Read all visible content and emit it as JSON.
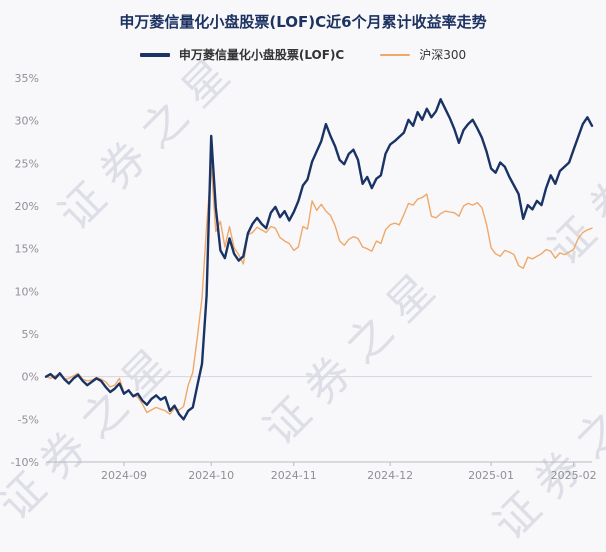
{
  "watermark": "证券之星",
  "chart_data": {
    "type": "line",
    "title": "申万菱信量化小盘股票(LOF)C近6个月累计收益率走势",
    "xlabel": "",
    "ylabel": "",
    "ylim": [
      -10,
      35
    ],
    "yticks": [
      -10,
      -5,
      0,
      5,
      10,
      15,
      20,
      25,
      30,
      35
    ],
    "ytick_suffix": "%",
    "xticks": [
      "2024-09",
      "2024-10",
      "2024-11",
      "2024-12",
      "2025-01",
      "2025-02"
    ],
    "grid": "zero-line-only",
    "legend_position": "top",
    "axis_color": "#b8b8c2",
    "tick_label_color": "#8f8f97",
    "zero_line_color": "#d6d6e0",
    "x": [
      "2024-08-08",
      "2024-08-09",
      "2024-08-12",
      "2024-08-13",
      "2024-08-14",
      "2024-08-15",
      "2024-08-16",
      "2024-08-19",
      "2024-08-20",
      "2024-08-21",
      "2024-08-22",
      "2024-08-23",
      "2024-08-26",
      "2024-08-27",
      "2024-08-28",
      "2024-08-29",
      "2024-08-30",
      "2024-09-02",
      "2024-09-03",
      "2024-09-04",
      "2024-09-05",
      "2024-09-06",
      "2024-09-09",
      "2024-09-10",
      "2024-09-11",
      "2024-09-12",
      "2024-09-13",
      "2024-09-18",
      "2024-09-19",
      "2024-09-20",
      "2024-09-23",
      "2024-09-24",
      "2024-09-25",
      "2024-09-26",
      "2024-09-27",
      "2024-09-30",
      "2024-10-08",
      "2024-10-09",
      "2024-10-10",
      "2024-10-11",
      "2024-10-14",
      "2024-10-15",
      "2024-10-16",
      "2024-10-17",
      "2024-10-18",
      "2024-10-21",
      "2024-10-22",
      "2024-10-23",
      "2024-10-24",
      "2024-10-25",
      "2024-10-28",
      "2024-10-29",
      "2024-10-30",
      "2024-10-31",
      "2024-11-01",
      "2024-11-04",
      "2024-11-05",
      "2024-11-06",
      "2024-11-07",
      "2024-11-08",
      "2024-11-11",
      "2024-11-12",
      "2024-11-13",
      "2024-11-14",
      "2024-11-15",
      "2024-11-18",
      "2024-11-19",
      "2024-11-20",
      "2024-11-21",
      "2024-11-22",
      "2024-11-25",
      "2024-11-26",
      "2024-11-27",
      "2024-11-28",
      "2024-11-29",
      "2024-12-02",
      "2024-12-03",
      "2024-12-04",
      "2024-12-05",
      "2024-12-06",
      "2024-12-09",
      "2024-12-10",
      "2024-12-11",
      "2024-12-12",
      "2024-12-13",
      "2024-12-16",
      "2024-12-17",
      "2024-12-18",
      "2024-12-19",
      "2024-12-20",
      "2024-12-23",
      "2024-12-24",
      "2024-12-25",
      "2024-12-26",
      "2024-12-27",
      "2024-12-30",
      "2024-12-31",
      "2025-01-02",
      "2025-01-03",
      "2025-01-06",
      "2025-01-07",
      "2025-01-08",
      "2025-01-09",
      "2025-01-10",
      "2025-01-13",
      "2025-01-14",
      "2025-01-15",
      "2025-01-16",
      "2025-01-17",
      "2025-01-20",
      "2025-01-21",
      "2025-01-22",
      "2025-01-23",
      "2025-01-24",
      "2025-01-27",
      "2025-02-05",
      "2025-02-06",
      "2025-02-07",
      "2025-02-10",
      "2025-02-11"
    ],
    "series": [
      {
        "name": "申万菱信量化小盘股票(LOF)C",
        "color": "#1a3365",
        "width": 2.4,
        "values": [
          0.0,
          0.3,
          -0.2,
          0.4,
          -0.3,
          -0.8,
          -0.2,
          0.2,
          -0.5,
          -1.0,
          -0.6,
          -0.2,
          -0.5,
          -1.2,
          -1.8,
          -1.4,
          -0.8,
          -2.0,
          -1.6,
          -2.3,
          -2.0,
          -2.8,
          -3.3,
          -2.6,
          -2.2,
          -2.7,
          -2.4,
          -4.0,
          -3.4,
          -4.4,
          -5.0,
          -4.0,
          -3.6,
          -1.0,
          1.5,
          9.5,
          28.2,
          19.8,
          14.8,
          13.9,
          16.2,
          14.4,
          13.6,
          14.1,
          16.8,
          17.9,
          18.6,
          17.9,
          17.4,
          19.2,
          19.9,
          18.7,
          19.4,
          18.3,
          19.3,
          20.6,
          22.4,
          23.1,
          25.2,
          26.4,
          27.6,
          29.6,
          28.2,
          27.0,
          25.4,
          24.9,
          26.1,
          26.6,
          25.4,
          22.6,
          23.4,
          22.1,
          23.2,
          23.6,
          26.1,
          27.2,
          27.6,
          28.1,
          28.6,
          30.1,
          29.4,
          31.0,
          30.1,
          31.4,
          30.4,
          31.1,
          32.5,
          31.4,
          30.3,
          29.0,
          27.4,
          28.9,
          29.6,
          30.1,
          29.1,
          28.0,
          26.4,
          24.4,
          23.9,
          25.1,
          24.6,
          23.4,
          22.4,
          21.4,
          18.5,
          20.1,
          19.6,
          20.6,
          20.1,
          22.1,
          23.6,
          22.6,
          24.1,
          24.6,
          25.1,
          26.6,
          28.1,
          29.6,
          30.4,
          29.4
        ]
      },
      {
        "name": "沪深300",
        "color": "#f0a868",
        "width": 1.4,
        "values": [
          0.0,
          -0.2,
          0.1,
          0.3,
          -0.3,
          -0.2,
          0.1,
          0.4,
          -0.3,
          -0.5,
          -0.4,
          -0.1,
          -0.3,
          -0.6,
          -1.2,
          -1.0,
          -0.2,
          -1.9,
          -1.6,
          -2.2,
          -2.4,
          -3.2,
          -4.2,
          -3.9,
          -3.6,
          -3.8,
          -4.0,
          -4.4,
          -3.7,
          -3.9,
          -3.5,
          -1.0,
          0.5,
          4.7,
          9.2,
          17.6,
          24.8,
          17.0,
          18.2,
          15.2,
          17.6,
          15.1,
          14.3,
          13.2,
          16.6,
          16.9,
          17.5,
          17.2,
          16.9,
          17.6,
          17.4,
          16.3,
          15.9,
          15.6,
          14.8,
          15.2,
          17.6,
          17.3,
          20.6,
          19.5,
          20.2,
          19.4,
          18.9,
          17.7,
          15.9,
          15.4,
          16.1,
          16.4,
          16.2,
          15.2,
          15.0,
          14.7,
          15.9,
          15.6,
          17.2,
          17.8,
          18.0,
          17.8,
          19.0,
          20.3,
          20.1,
          20.8,
          21.0,
          21.4,
          18.8,
          18.6,
          19.1,
          19.4,
          19.3,
          19.2,
          18.8,
          20.0,
          20.3,
          20.1,
          20.4,
          19.8,
          17.9,
          15.1,
          14.4,
          14.1,
          14.8,
          14.6,
          14.3,
          13.0,
          12.7,
          14.0,
          13.8,
          14.1,
          14.4,
          14.9,
          14.7,
          13.9,
          14.5,
          14.3,
          14.6,
          14.9,
          16.2,
          16.9,
          17.2,
          17.4
        ]
      }
    ]
  }
}
